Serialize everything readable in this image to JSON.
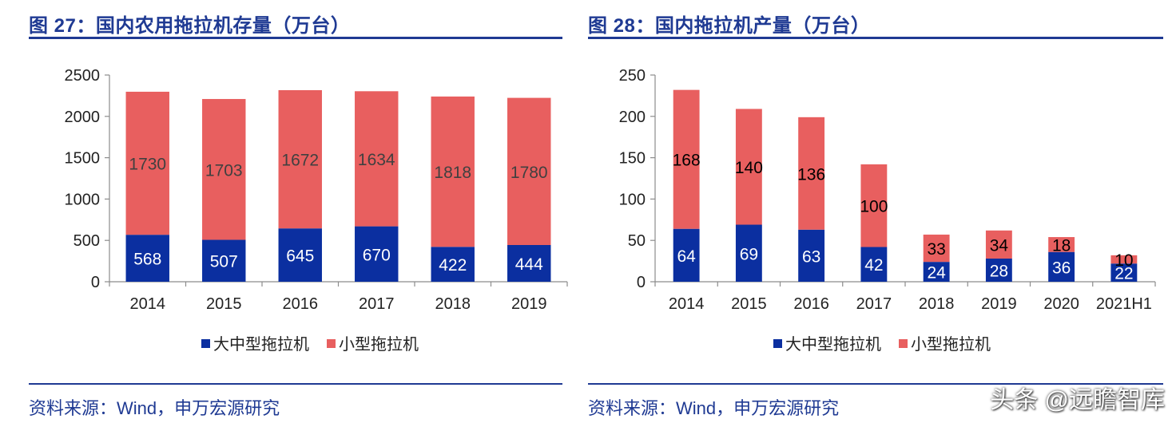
{
  "colors": {
    "large": "#0b2fa0",
    "small": "#e85f5f",
    "title": "#1f3a93"
  },
  "left": {
    "title": "图 27：国内农用拖拉机存量（万台）",
    "source": "资料来源：Wind，申万宏源研究"
  },
  "right": {
    "title": "图 28：国内拖拉机产量（万台）",
    "source": "资料来源：Wind，申万宏源研究"
  },
  "watermark": "头条 @远瞻智库",
  "chart_data": [
    {
      "type": "bar",
      "stacked": true,
      "title": "图 27：国内农用拖拉机存量（万台）",
      "categories": [
        "2014",
        "2015",
        "2016",
        "2017",
        "2018",
        "2019"
      ],
      "series": [
        {
          "name": "大中型拖拉机",
          "values": [
            568,
            507,
            645,
            670,
            422,
            444
          ]
        },
        {
          "name": "小型拖拉机",
          "values": [
            1730,
            1703,
            1672,
            1634,
            1818,
            1780
          ]
        }
      ],
      "ylim": [
        0,
        2500
      ],
      "yticks": [
        "0",
        "500",
        "1000",
        "1500",
        "2000",
        "2500"
      ],
      "legend": "bottom",
      "grid": false
    },
    {
      "type": "bar",
      "stacked": true,
      "title": "图 28：国内拖拉机产量（万台）",
      "categories": [
        "2014",
        "2015",
        "2016",
        "2017",
        "2018",
        "2019",
        "2020",
        "2021H1"
      ],
      "series": [
        {
          "name": "大中型拖拉机",
          "values": [
            64,
            69,
            63,
            42,
            24,
            28,
            36,
            22
          ]
        },
        {
          "name": "小型拖拉机",
          "values": [
            168,
            140,
            136,
            100,
            33,
            34,
            18,
            10
          ]
        }
      ],
      "ylim": [
        0,
        250
      ],
      "yticks": [
        "0",
        "50",
        "100",
        "150",
        "200",
        "250"
      ],
      "legend": "bottom",
      "grid": false
    }
  ]
}
